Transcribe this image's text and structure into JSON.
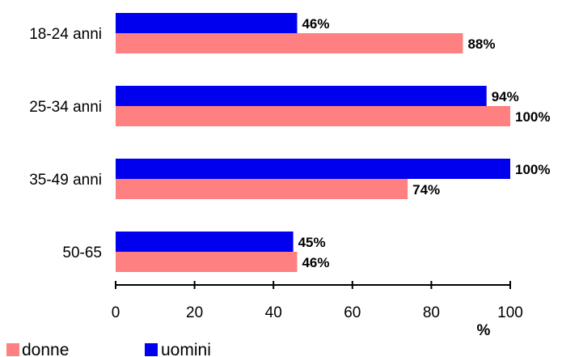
{
  "chart_data": {
    "type": "bar",
    "orientation": "horizontal",
    "categories": [
      "18-24 anni",
      "25-34 anni",
      "35-49 anni",
      "50-65"
    ],
    "series": [
      {
        "name": "uomini",
        "color": "#0000ee",
        "values": [
          46,
          94,
          100,
          45
        ],
        "labels": [
          "46%",
          "94%",
          "100%",
          "45%"
        ]
      },
      {
        "name": "donne",
        "color": "#ff8080",
        "values": [
          88,
          100,
          74,
          46
        ],
        "labels": [
          "88%",
          "100%",
          "74%",
          "46%"
        ]
      }
    ],
    "xlim": [
      0,
      100
    ],
    "xticks": [
      0,
      20,
      40,
      60,
      80,
      100
    ],
    "xtick_labels": [
      "0",
      "20",
      "40",
      "60",
      "80",
      "100"
    ],
    "xunit": "%",
    "grid": false,
    "legend": {
      "placement": "bottom-left",
      "items": [
        {
          "label": "donne",
          "color": "#ff8080"
        },
        {
          "label": "uomini",
          "color": "#0000ee"
        }
      ]
    }
  }
}
